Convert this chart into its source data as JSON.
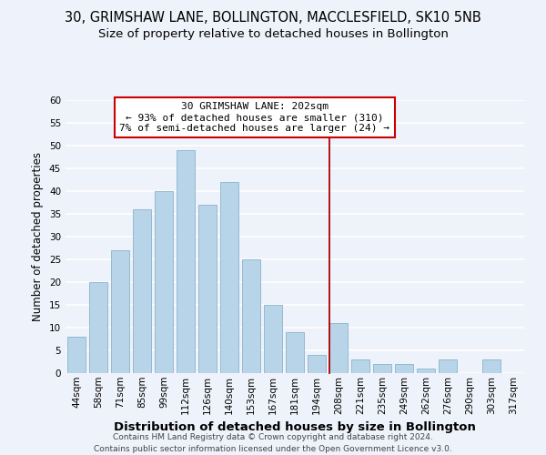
{
  "title": "30, GRIMSHAW LANE, BOLLINGTON, MACCLESFIELD, SK10 5NB",
  "subtitle": "Size of property relative to detached houses in Bollington",
  "xlabel": "Distribution of detached houses by size in Bollington",
  "ylabel": "Number of detached properties",
  "bin_labels": [
    "44sqm",
    "58sqm",
    "71sqm",
    "85sqm",
    "99sqm",
    "112sqm",
    "126sqm",
    "140sqm",
    "153sqm",
    "167sqm",
    "181sqm",
    "194sqm",
    "208sqm",
    "221sqm",
    "235sqm",
    "249sqm",
    "262sqm",
    "276sqm",
    "290sqm",
    "303sqm",
    "317sqm"
  ],
  "bar_heights": [
    8,
    20,
    27,
    36,
    40,
    49,
    37,
    42,
    25,
    15,
    9,
    4,
    11,
    3,
    2,
    2,
    1,
    3,
    0,
    3,
    0
  ],
  "bar_color": "#b8d4e8",
  "bar_edge_color": "#8ab4cc",
  "reference_line_color": "#aa0000",
  "annotation_box_text": "30 GRIMSHAW LANE: 202sqm\n← 93% of detached houses are smaller (310)\n7% of semi-detached houses are larger (24) →",
  "annotation_box_facecolor": "#ffffff",
  "annotation_box_edgecolor": "#cc0000",
  "ylim": [
    0,
    60
  ],
  "yticks": [
    0,
    5,
    10,
    15,
    20,
    25,
    30,
    35,
    40,
    45,
    50,
    55,
    60
  ],
  "footer_text": "Contains HM Land Registry data © Crown copyright and database right 2024.\nContains public sector information licensed under the Open Government Licence v3.0.",
  "bg_color": "#eef2fa",
  "grid_color": "#ffffff",
  "title_fontsize": 10.5,
  "subtitle_fontsize": 9.5,
  "xlabel_fontsize": 9.5,
  "ylabel_fontsize": 8.5,
  "tick_fontsize": 7.5,
  "annotation_fontsize": 8.0,
  "footer_fontsize": 6.5
}
